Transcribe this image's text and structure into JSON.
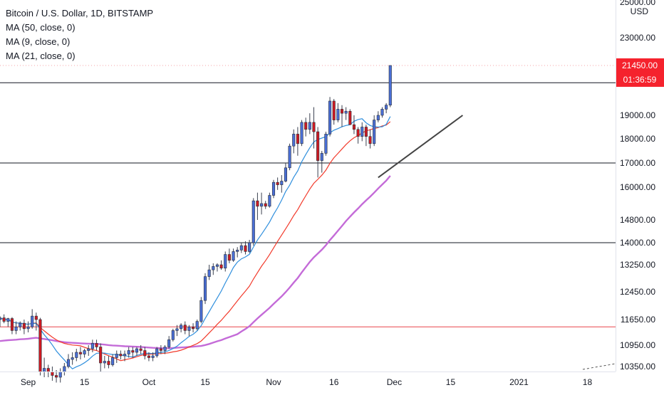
{
  "legend": {
    "title": "Bitcoin / U.S. Dollar, 1D, BITSTAMP",
    "ma50": "MA (50, close, 0)",
    "ma9": "MA (9, close, 0)",
    "ma21": "MA (21, close, 0)"
  },
  "currency": "USD",
  "price_label": {
    "value": 21450,
    "text": "21450.00"
  },
  "countdown": "01:36:59",
  "colors": {
    "up": "#4a6fd6",
    "down": "#cf1a22",
    "ma9": "#2f8fdd",
    "ma21": "#f23a2b",
    "ma50": "#c46bd8",
    "hline": "#131722",
    "support": "#e8434a",
    "trendline": "#444444",
    "tag_red": "#f5222d"
  },
  "chart_data": {
    "type": "candlestick",
    "y_ticks": [
      25000,
      23000,
      19000,
      18000,
      17000,
      16000,
      14800,
      14000,
      13250,
      12450,
      11650,
      10950,
      10350
    ],
    "y_tick_labels": [
      "25000.00",
      "23000.00",
      "19000.00",
      "18000.00",
      "17000.00",
      "16000.00",
      "14800.00",
      "14000.00",
      "13250.00",
      "12450.00",
      "11650.00",
      "10950.00",
      "10350.00"
    ],
    "x_ticks": [
      {
        "label": "Sep",
        "date": "2020-09-01"
      },
      {
        "label": "15",
        "date": "2020-09-15"
      },
      {
        "label": "Oct",
        "date": "2020-10-01"
      },
      {
        "label": "15",
        "date": "2020-10-15"
      },
      {
        "label": "Nov",
        "date": "2020-11-01"
      },
      {
        "label": "16",
        "date": "2020-11-16"
      },
      {
        "label": "Dec",
        "date": "2020-12-01"
      },
      {
        "label": "15",
        "date": "2020-12-15"
      },
      {
        "label": "2021",
        "date": "2021-01-01"
      },
      {
        "label": "18",
        "date": "2021-01-18"
      }
    ],
    "x_range": [
      "2020-08-25",
      "2021-01-25"
    ],
    "first_date": "2020-08-25",
    "ohlc": [
      [
        11650,
        11750,
        11450,
        11700
      ],
      [
        11700,
        11800,
        11550,
        11600
      ],
      [
        11600,
        11700,
        11450,
        11680
      ],
      [
        11680,
        11720,
        11250,
        11350
      ],
      [
        11350,
        11600,
        11250,
        11450
      ],
      [
        11450,
        11600,
        11350,
        11550
      ],
      [
        11550,
        11650,
        11250,
        11400
      ],
      [
        11400,
        11600,
        11300,
        11450
      ],
      [
        11450,
        11950,
        11400,
        11750
      ],
      [
        11750,
        11850,
        11350,
        11650
      ],
      [
        11650,
        11700,
        10100,
        10200
      ],
      [
        10200,
        10600,
        10050,
        10300
      ],
      [
        10300,
        10400,
        10050,
        10200
      ],
      [
        10200,
        10350,
        9950,
        10100
      ],
      [
        10100,
        10250,
        9900,
        10050
      ],
      [
        10050,
        10300,
        9900,
        10200
      ],
      [
        10200,
        10450,
        10100,
        10350
      ],
      [
        10350,
        10700,
        10300,
        10550
      ],
      [
        10550,
        10750,
        10400,
        10600
      ],
      [
        10600,
        10850,
        10500,
        10750
      ],
      [
        10750,
        10900,
        10550,
        10700
      ],
      [
        10700,
        10850,
        10600,
        10800
      ],
      [
        10800,
        10950,
        10650,
        10850
      ],
      [
        10850,
        11100,
        10750,
        11000
      ],
      [
        11000,
        11100,
        10800,
        10900
      ],
      [
        10900,
        11000,
        10200,
        10450
      ],
      [
        10450,
        10650,
        10300,
        10500
      ],
      [
        10500,
        10650,
        10300,
        10400
      ],
      [
        10400,
        10700,
        10350,
        10600
      ],
      [
        10600,
        10800,
        10450,
        10700
      ],
      [
        10700,
        10800,
        10550,
        10650
      ],
      [
        10650,
        10800,
        10500,
        10700
      ],
      [
        10700,
        10900,
        10600,
        10800
      ],
      [
        10800,
        10900,
        10600,
        10750
      ],
      [
        10750,
        10900,
        10650,
        10850
      ],
      [
        10850,
        10950,
        10700,
        10800
      ],
      [
        10800,
        10900,
        10550,
        10650
      ],
      [
        10650,
        10750,
        10500,
        10600
      ],
      [
        10600,
        10750,
        10500,
        10650
      ],
      [
        10650,
        10900,
        10600,
        10850
      ],
      [
        10850,
        10950,
        10700,
        10800
      ],
      [
        10800,
        10950,
        10700,
        10900
      ],
      [
        10900,
        11200,
        10850,
        11100
      ],
      [
        11100,
        11400,
        11050,
        11350
      ],
      [
        11350,
        11500,
        11200,
        11400
      ],
      [
        11400,
        11550,
        11300,
        11500
      ],
      [
        11500,
        11600,
        11250,
        11350
      ],
      [
        11350,
        11500,
        11200,
        11450
      ],
      [
        11450,
        11550,
        11300,
        11400
      ],
      [
        11400,
        11650,
        11350,
        11600
      ],
      [
        11600,
        12300,
        11550,
        12200
      ],
      [
        12200,
        13000,
        12100,
        12900
      ],
      [
        12900,
        13250,
        12800,
        13100
      ],
      [
        13100,
        13300,
        12950,
        13200
      ],
      [
        13200,
        13300,
        13050,
        13250
      ],
      [
        13250,
        13400,
        13100,
        13150
      ],
      [
        13150,
        13700,
        13050,
        13600
      ],
      [
        13600,
        13800,
        13300,
        13400
      ],
      [
        13400,
        13800,
        13350,
        13700
      ],
      [
        13700,
        13850,
        13500,
        13750
      ],
      [
        13750,
        14000,
        13650,
        13900
      ],
      [
        13900,
        14050,
        13600,
        13700
      ],
      [
        13700,
        14100,
        13650,
        14000
      ],
      [
        14000,
        15600,
        13900,
        15500
      ],
      [
        15500,
        15800,
        14800,
        15300
      ],
      [
        15300,
        15800,
        15000,
        15400
      ],
      [
        15400,
        15500,
        15200,
        15300
      ],
      [
        15300,
        15800,
        15250,
        15700
      ],
      [
        15700,
        16300,
        15600,
        16200
      ],
      [
        16200,
        16400,
        15900,
        16100
      ],
      [
        16100,
        16500,
        15800,
        16250
      ],
      [
        16250,
        17000,
        16200,
        16800
      ],
      [
        16800,
        17800,
        16700,
        17700
      ],
      [
        17700,
        18400,
        17400,
        18200
      ],
      [
        18200,
        18500,
        17300,
        17800
      ],
      [
        17800,
        18800,
        17700,
        18700
      ],
      [
        18700,
        18900,
        18100,
        18400
      ],
      [
        18400,
        19100,
        18200,
        18700
      ],
      [
        18700,
        19400,
        17600,
        18300
      ],
      [
        18300,
        18500,
        16400,
        17100
      ],
      [
        17100,
        17500,
        16600,
        17400
      ],
      [
        17400,
        18300,
        17300,
        18200
      ],
      [
        18200,
        19900,
        18100,
        19700
      ],
      [
        19700,
        19800,
        18600,
        18800
      ],
      [
        18800,
        19600,
        18700,
        19300
      ],
      [
        19300,
        19500,
        18500,
        19100
      ],
      [
        19100,
        19400,
        18800,
        19200
      ],
      [
        19200,
        19300,
        18600,
        18600
      ],
      [
        18600,
        19000,
        18200,
        18400
      ],
      [
        18400,
        18500,
        17800,
        18100
      ],
      [
        18100,
        18700,
        17900,
        18500
      ],
      [
        18500,
        18600,
        17700,
        18100
      ],
      [
        18100,
        18400,
        17600,
        17800
      ],
      [
        17800,
        19000,
        17700,
        18800
      ],
      [
        18800,
        19200,
        18700,
        19000
      ],
      [
        19000,
        19400,
        18900,
        19300
      ],
      [
        19300,
        19600,
        19100,
        19500
      ],
      [
        19500,
        21450,
        19400,
        21450
      ]
    ],
    "ma_values_note": "Moving averages MA(9), MA(21), MA(50) are computed from the close values."
  },
  "hlines": [
    20600,
    17000,
    14000,
    11450
  ],
  "trendline": {
    "start": {
      "date": "2020-11-27",
      "price": 16400
    },
    "end": {
      "date": "2020-12-18",
      "price": 19000
    }
  }
}
